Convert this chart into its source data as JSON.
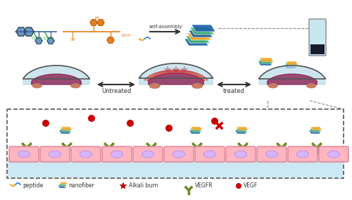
{
  "title": "",
  "bg_color": "#ffffff",
  "legend_items": [
    {
      "label": "peptide",
      "color_main": "#f5a623",
      "color_secondary": "#4a90d9",
      "type": "peptide"
    },
    {
      "label": "nanofiber",
      "type": "nanofiber"
    },
    {
      "label": "Alkali burn",
      "color": "#cc0000",
      "type": "star"
    },
    {
      "label": "VEGFR",
      "color": "#6b8e23",
      "type": "Y"
    },
    {
      "label": "VEGF",
      "color": "#cc0000",
      "type": "circle"
    }
  ],
  "arrow_labels": [
    "Untreated",
    "treated"
  ],
  "self_assembly_label": "self-assembly",
  "fig_width": 5.0,
  "fig_height": 2.84,
  "dpi": 100,
  "border_color": "#555555",
  "cell_fill": "#ffb6c1",
  "cell_stroke": "#e08090",
  "cell_nucleus_fill": "#d8b4fe",
  "water_fill": "#add8e6",
  "vegfr_color": "#6b8e23",
  "vegf_color": "#cc0000",
  "nanofiber_colors": [
    "#1a5fa8",
    "#3cb371",
    "#f5a623"
  ],
  "eye_colors": {
    "cornea": "#b0d8e8",
    "vessels": "#cc3333",
    "tissue": "#c97b63",
    "dark": "#8b2252"
  }
}
